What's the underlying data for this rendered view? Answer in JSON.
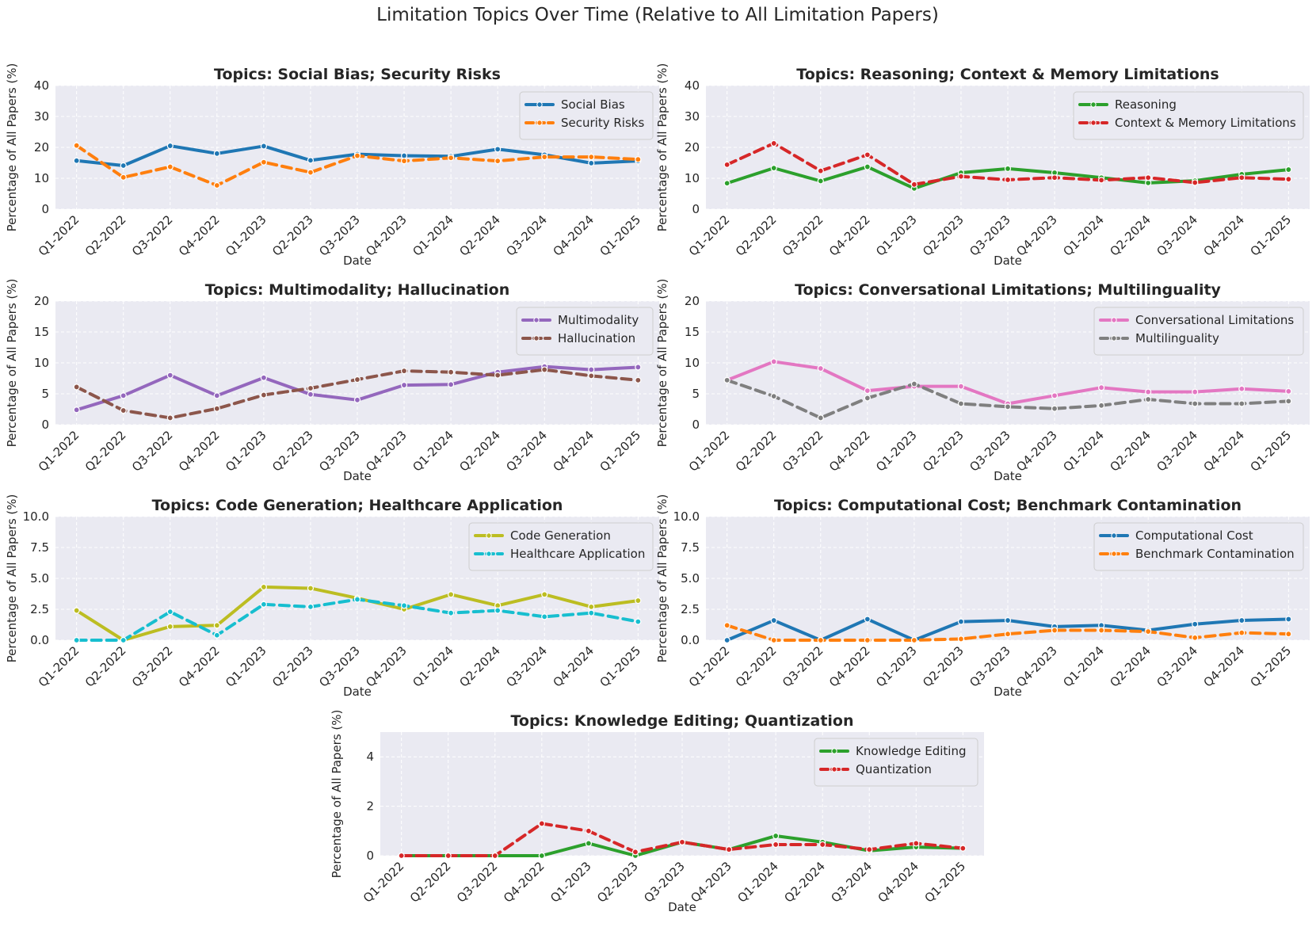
{
  "figure_title": "Limitation Topics Over Time (Relative to All Limitation Papers)",
  "colors": {
    "background": "#eaeaf2",
    "grid": "#ffffff",
    "blue": "#1f77b4",
    "orange": "#ff7f0e",
    "green": "#2ca02c",
    "red": "#d62728",
    "purple": "#9467bd",
    "brown": "#8c564b",
    "pink": "#e377c2",
    "gray": "#7f7f7f",
    "olive": "#bcbd22",
    "cyan": "#17becf"
  },
  "chart_data": [
    {
      "type": "line",
      "title": "Topics: Social Bias; Security Risks",
      "xlabel": "Date",
      "ylabel": "Percentage of All Papers (%)",
      "categories": [
        "Q1-2022",
        "Q2-2022",
        "Q3-2022",
        "Q4-2022",
        "Q1-2023",
        "Q2-2023",
        "Q3-2023",
        "Q4-2023",
        "Q1-2024",
        "Q2-2024",
        "Q3-2024",
        "Q4-2024",
        "Q1-2025"
      ],
      "ylim": [
        0,
        40
      ],
      "yticks": [
        "0",
        "10",
        "20",
        "30",
        "40"
      ],
      "ytick_values": [
        0,
        10,
        20,
        30,
        40
      ],
      "grid": true,
      "legend": "upper right",
      "series": [
        {
          "name": "Social Bias",
          "color": "#1f77b4",
          "style": "solid",
          "values": [
            15.7,
            14.1,
            20.5,
            18.0,
            20.4,
            15.8,
            17.8,
            17.3,
            17.1,
            19.4,
            17.6,
            14.9,
            15.6
          ]
        },
        {
          "name": "Security Risks",
          "color": "#ff7f0e",
          "style": "dashed",
          "values": [
            20.6,
            10.3,
            13.7,
            7.7,
            15.2,
            11.9,
            17.3,
            15.6,
            16.6,
            15.6,
            16.9,
            16.9,
            16.1
          ]
        }
      ]
    },
    {
      "type": "line",
      "title": "Topics: Reasoning; Context & Memory Limitations",
      "xlabel": "Date",
      "ylabel": "Percentage of All Papers (%)",
      "categories": [
        "Q1-2022",
        "Q2-2022",
        "Q3-2022",
        "Q4-2022",
        "Q1-2023",
        "Q2-2023",
        "Q3-2023",
        "Q4-2023",
        "Q1-2024",
        "Q2-2024",
        "Q3-2024",
        "Q4-2024",
        "Q1-2025"
      ],
      "ylim": [
        0,
        40
      ],
      "yticks": [
        "0",
        "10",
        "20",
        "30",
        "40"
      ],
      "ytick_values": [
        0,
        10,
        20,
        30,
        40
      ],
      "grid": true,
      "legend": "upper right",
      "series": [
        {
          "name": "Reasoning",
          "color": "#2ca02c",
          "style": "solid",
          "values": [
            8.4,
            13.3,
            9.1,
            13.7,
            6.7,
            11.8,
            13.1,
            11.8,
            10.2,
            8.5,
            9.2,
            11.3,
            12.8
          ]
        },
        {
          "name": "Context & Memory Limitations",
          "color": "#d62728",
          "style": "dashed",
          "values": [
            14.4,
            21.3,
            12.4,
            17.6,
            8.0,
            10.6,
            9.5,
            10.2,
            9.4,
            10.2,
            8.6,
            10.2,
            9.7
          ]
        }
      ]
    },
    {
      "type": "line",
      "title": "Topics: Multimodality; Hallucination",
      "xlabel": "Date",
      "ylabel": "Percentage of All Papers (%)",
      "categories": [
        "Q1-2022",
        "Q2-2022",
        "Q3-2022",
        "Q4-2022",
        "Q1-2023",
        "Q2-2023",
        "Q3-2023",
        "Q4-2023",
        "Q1-2024",
        "Q2-2024",
        "Q3-2024",
        "Q4-2024",
        "Q1-2025"
      ],
      "ylim": [
        0,
        20
      ],
      "yticks": [
        "0",
        "5",
        "10",
        "15",
        "20"
      ],
      "ytick_values": [
        0,
        5,
        10,
        15,
        20
      ],
      "grid": true,
      "legend": "upper right",
      "series": [
        {
          "name": "Multimodality",
          "color": "#9467bd",
          "style": "solid",
          "values": [
            2.4,
            4.7,
            8.0,
            4.7,
            7.6,
            4.9,
            4.0,
            6.4,
            6.5,
            8.5,
            9.4,
            8.9,
            9.3
          ]
        },
        {
          "name": "Hallucination",
          "color": "#8c564b",
          "style": "dashed",
          "values": [
            6.1,
            2.3,
            1.1,
            2.6,
            4.8,
            5.9,
            7.3,
            8.7,
            8.5,
            8.0,
            8.9,
            7.9,
            7.2
          ]
        }
      ]
    },
    {
      "type": "line",
      "title": "Topics: Conversational Limitations; Multilinguality",
      "xlabel": "Date",
      "ylabel": "Percentage of All Papers (%)",
      "categories": [
        "Q1-2022",
        "Q2-2022",
        "Q3-2022",
        "Q4-2022",
        "Q1-2023",
        "Q2-2023",
        "Q3-2023",
        "Q4-2023",
        "Q1-2024",
        "Q2-2024",
        "Q3-2024",
        "Q4-2024",
        "Q1-2025"
      ],
      "ylim": [
        0,
        20
      ],
      "yticks": [
        "0",
        "5",
        "10",
        "15",
        "20"
      ],
      "ytick_values": [
        0,
        5,
        10,
        15,
        20
      ],
      "grid": true,
      "legend": "upper right",
      "series": [
        {
          "name": "Conversational Limitations",
          "color": "#e377c2",
          "style": "solid",
          "values": [
            7.2,
            10.2,
            9.1,
            5.5,
            6.2,
            6.2,
            3.4,
            4.7,
            6.0,
            5.3,
            5.3,
            5.8,
            5.4
          ]
        },
        {
          "name": "Multilinguality",
          "color": "#7f7f7f",
          "style": "dashed",
          "values": [
            7.2,
            4.6,
            1.1,
            4.3,
            6.6,
            3.4,
            2.9,
            2.6,
            3.1,
            4.1,
            3.4,
            3.4,
            3.8
          ]
        }
      ]
    },
    {
      "type": "line",
      "title": "Topics: Code Generation; Healthcare Application",
      "xlabel": "Date",
      "ylabel": "Percentage of All Papers (%)",
      "categories": [
        "Q1-2022",
        "Q2-2022",
        "Q3-2022",
        "Q4-2022",
        "Q1-2023",
        "Q2-2023",
        "Q3-2023",
        "Q4-2023",
        "Q1-2024",
        "Q2-2024",
        "Q3-2024",
        "Q4-2024",
        "Q1-2025"
      ],
      "ylim": [
        0,
        10
      ],
      "yticks": [
        "0.0",
        "2.5",
        "5.0",
        "7.5",
        "10.0"
      ],
      "ytick_values": [
        0,
        2.5,
        5,
        7.5,
        10
      ],
      "grid": true,
      "legend": "upper right",
      "series": [
        {
          "name": "Code Generation",
          "color": "#bcbd22",
          "style": "solid",
          "values": [
            2.4,
            0.0,
            1.1,
            1.2,
            4.3,
            4.2,
            3.4,
            2.5,
            3.7,
            2.8,
            3.7,
            2.7,
            3.2
          ]
        },
        {
          "name": "Healthcare Application",
          "color": "#17becf",
          "style": "dashed",
          "values": [
            0.0,
            0.0,
            2.3,
            0.4,
            2.9,
            2.7,
            3.3,
            2.8,
            2.2,
            2.4,
            1.9,
            2.2,
            1.5
          ]
        }
      ]
    },
    {
      "type": "line",
      "title": "Topics: Computational Cost; Benchmark Contamination",
      "xlabel": "Date",
      "ylabel": "Percentage of All Papers (%)",
      "categories": [
        "Q1-2022",
        "Q2-2022",
        "Q3-2022",
        "Q4-2022",
        "Q1-2023",
        "Q2-2023",
        "Q3-2023",
        "Q4-2023",
        "Q1-2024",
        "Q2-2024",
        "Q3-2024",
        "Q4-2024",
        "Q1-2025"
      ],
      "ylim": [
        0,
        10
      ],
      "yticks": [
        "0.0",
        "2.5",
        "5.0",
        "7.5",
        "10.0"
      ],
      "ytick_values": [
        0,
        2.5,
        5,
        7.5,
        10
      ],
      "grid": true,
      "legend": "upper right",
      "series": [
        {
          "name": "Computational Cost",
          "color": "#1f77b4",
          "style": "solid",
          "values": [
            0.0,
            1.6,
            0.0,
            1.7,
            0.0,
            1.5,
            1.6,
            1.1,
            1.2,
            0.8,
            1.3,
            1.6,
            1.7
          ]
        },
        {
          "name": "Benchmark Contamination",
          "color": "#ff7f0e",
          "style": "dashed",
          "values": [
            1.2,
            0.0,
            0.0,
            0.0,
            0.0,
            0.1,
            0.5,
            0.8,
            0.8,
            0.7,
            0.2,
            0.6,
            0.5
          ]
        }
      ]
    },
    {
      "type": "line",
      "title": "Topics: Knowledge Editing; Quantization",
      "xlabel": "Date",
      "ylabel": "Percentage of All Papers (%)",
      "categories": [
        "Q1-2022",
        "Q2-2022",
        "Q3-2022",
        "Q4-2022",
        "Q1-2023",
        "Q2-2023",
        "Q3-2023",
        "Q4-2023",
        "Q1-2024",
        "Q2-2024",
        "Q3-2024",
        "Q4-2024",
        "Q1-2025"
      ],
      "ylim": [
        0,
        5
      ],
      "yticks": [
        "0",
        "2",
        "4"
      ],
      "ytick_values": [
        0,
        2,
        4
      ],
      "grid": true,
      "legend": "upper right",
      "series": [
        {
          "name": "Knowledge Editing",
          "color": "#2ca02c",
          "style": "solid",
          "values": [
            0.0,
            0.0,
            0.0,
            0.0,
            0.5,
            0.0,
            0.55,
            0.25,
            0.8,
            0.55,
            0.2,
            0.35,
            0.3
          ]
        },
        {
          "name": "Quantization",
          "color": "#d62728",
          "style": "dashed",
          "values": [
            0.0,
            0.0,
            0.0,
            1.3,
            1.0,
            0.15,
            0.55,
            0.25,
            0.45,
            0.45,
            0.25,
            0.5,
            0.3
          ]
        }
      ]
    }
  ]
}
